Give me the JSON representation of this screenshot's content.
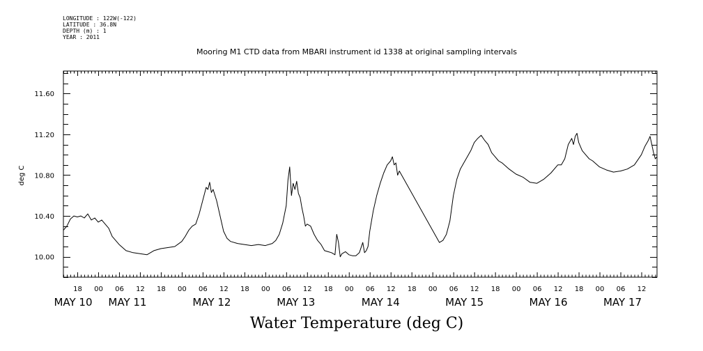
{
  "header": {
    "longitude": "LONGITUDE : 122W(-122)",
    "latitude": "LATITUDE : 36.8N",
    "depth": "DEPTH (m) : 1",
    "year": "YEAR : 2011"
  },
  "title": "Mooring M1 CTD data from MBARI instrument id 1338 at original sampling intervals",
  "footer": "Water Temperature (deg C)",
  "chart_data": {
    "type": "line",
    "title": "Mooring M1 CTD data from MBARI instrument id 1338 at original sampling intervals",
    "xlabel": "",
    "ylabel": "deg C",
    "x_unit": "hours since May 10 00:00 (2011)",
    "xlim": [
      14,
      184.5
    ],
    "ylim": [
      9.8,
      11.82
    ],
    "y_ticks": [
      10.0,
      10.4,
      10.8,
      11.2,
      11.6
    ],
    "y_tick_labels": [
      "10.00",
      "10.40",
      "10.80",
      "11.20",
      "11.60"
    ],
    "x_tick_hours": [
      18,
      24,
      30,
      36,
      42,
      48,
      54,
      60,
      66,
      72,
      78,
      84,
      90,
      96,
      102,
      108,
      114,
      120,
      126,
      132,
      138,
      144,
      150,
      156,
      162,
      168,
      174,
      180
    ],
    "x_tick_labels": [
      "18",
      "00",
      "06",
      "12",
      "18",
      "00",
      "06",
      "12",
      "18",
      "00",
      "06",
      "12",
      "18",
      "00",
      "06",
      "12",
      "18",
      "00",
      "06",
      "12",
      "18",
      "00",
      "06",
      "12",
      "18",
      "00",
      "06",
      "12"
    ],
    "day_labels": [
      {
        "text": "MAY 10",
        "hour": 16.8
      },
      {
        "text": "MAY 11",
        "hour": 32.4
      },
      {
        "text": "MAY 12",
        "hour": 56.6
      },
      {
        "text": "MAY 13",
        "hour": 80.8
      },
      {
        "text": "MAY 14",
        "hour": 105.1
      },
      {
        "text": "MAY 15",
        "hour": 129.2
      },
      {
        "text": "MAY 16",
        "hour": 153.3
      },
      {
        "text": "MAY 17",
        "hour": 174.6
      }
    ],
    "grid": false,
    "series": [
      {
        "name": "",
        "color": "#000000",
        "points": [
          [
            14.0,
            10.26
          ],
          [
            15.0,
            10.3
          ],
          [
            16.0,
            10.37
          ],
          [
            17.0,
            10.4
          ],
          [
            18.0,
            10.39
          ],
          [
            19.0,
            10.4
          ],
          [
            20.0,
            10.38
          ],
          [
            21.0,
            10.42
          ],
          [
            22.0,
            10.36
          ],
          [
            23.0,
            10.38
          ],
          [
            24.0,
            10.34
          ],
          [
            25.0,
            10.36
          ],
          [
            26.0,
            10.32
          ],
          [
            27.0,
            10.28
          ],
          [
            28.0,
            10.2
          ],
          [
            30.0,
            10.12
          ],
          [
            32.0,
            10.06
          ],
          [
            34.0,
            10.04
          ],
          [
            36.0,
            10.03
          ],
          [
            38.0,
            10.02
          ],
          [
            40.0,
            10.06
          ],
          [
            42.0,
            10.08
          ],
          [
            44.0,
            10.09
          ],
          [
            46.0,
            10.1
          ],
          [
            48.0,
            10.15
          ],
          [
            49.0,
            10.2
          ],
          [
            50.0,
            10.26
          ],
          [
            51.0,
            10.3
          ],
          [
            52.0,
            10.32
          ],
          [
            53.0,
            10.42
          ],
          [
            54.0,
            10.55
          ],
          [
            55.0,
            10.68
          ],
          [
            55.5,
            10.66
          ],
          [
            56.0,
            10.73
          ],
          [
            56.5,
            10.63
          ],
          [
            57.0,
            10.66
          ],
          [
            58.0,
            10.55
          ],
          [
            59.0,
            10.4
          ],
          [
            60.0,
            10.25
          ],
          [
            61.0,
            10.18
          ],
          [
            62.0,
            10.15
          ],
          [
            64.0,
            10.13
          ],
          [
            66.0,
            10.12
          ],
          [
            68.0,
            10.11
          ],
          [
            70.0,
            10.12
          ],
          [
            72.0,
            10.11
          ],
          [
            74.0,
            10.13
          ],
          [
            75.0,
            10.16
          ],
          [
            76.0,
            10.22
          ],
          [
            77.0,
            10.33
          ],
          [
            78.0,
            10.5
          ],
          [
            78.5,
            10.75
          ],
          [
            79.0,
            10.88
          ],
          [
            79.5,
            10.6
          ],
          [
            80.0,
            10.72
          ],
          [
            80.5,
            10.66
          ],
          [
            81.0,
            10.74
          ],
          [
            81.5,
            10.62
          ],
          [
            82.0,
            10.58
          ],
          [
            82.5,
            10.48
          ],
          [
            83.0,
            10.4
          ],
          [
            83.5,
            10.3
          ],
          [
            84.0,
            10.32
          ],
          [
            85.0,
            10.3
          ],
          [
            86.0,
            10.22
          ],
          [
            87.0,
            10.16
          ],
          [
            88.0,
            10.12
          ],
          [
            89.0,
            10.06
          ],
          [
            90.0,
            10.05
          ],
          [
            91.0,
            10.04
          ],
          [
            92.0,
            10.02
          ],
          [
            92.5,
            10.22
          ],
          [
            93.0,
            10.14
          ],
          [
            93.5,
            10.0
          ],
          [
            94.0,
            10.03
          ],
          [
            95.0,
            10.05
          ],
          [
            96.0,
            10.02
          ],
          [
            97.0,
            10.01
          ],
          [
            98.0,
            10.01
          ],
          [
            99.0,
            10.04
          ],
          [
            100.0,
            10.14
          ],
          [
            100.5,
            10.04
          ],
          [
            101.0,
            10.06
          ],
          [
            101.5,
            10.1
          ],
          [
            102.0,
            10.25
          ],
          [
            103.0,
            10.45
          ],
          [
            104.0,
            10.6
          ],
          [
            105.0,
            10.72
          ],
          [
            106.0,
            10.82
          ],
          [
            107.0,
            10.9
          ],
          [
            108.0,
            10.94
          ],
          [
            108.5,
            10.98
          ],
          [
            109.0,
            10.9
          ],
          [
            109.5,
            10.92
          ],
          [
            110.0,
            10.8
          ],
          [
            110.5,
            10.84
          ],
          [
            122.0,
            10.14
          ],
          [
            123.0,
            10.16
          ],
          [
            124.0,
            10.22
          ],
          [
            125.0,
            10.35
          ],
          [
            126.0,
            10.6
          ],
          [
            127.0,
            10.76
          ],
          [
            128.0,
            10.86
          ],
          [
            129.0,
            10.92
          ],
          [
            130.0,
            10.98
          ],
          [
            131.0,
            11.04
          ],
          [
            132.0,
            11.12
          ],
          [
            133.0,
            11.16
          ],
          [
            134.0,
            11.19
          ],
          [
            135.0,
            11.14
          ],
          [
            136.0,
            11.1
          ],
          [
            137.0,
            11.02
          ],
          [
            138.0,
            10.98
          ],
          [
            139.0,
            10.94
          ],
          [
            140.0,
            10.92
          ],
          [
            142.0,
            10.86
          ],
          [
            144.0,
            10.81
          ],
          [
            146.0,
            10.78
          ],
          [
            148.0,
            10.73
          ],
          [
            150.0,
            10.72
          ],
          [
            152.0,
            10.76
          ],
          [
            154.0,
            10.82
          ],
          [
            156.0,
            10.9
          ],
          [
            157.0,
            10.9
          ],
          [
            158.0,
            10.96
          ],
          [
            159.0,
            11.1
          ],
          [
            160.0,
            11.16
          ],
          [
            160.5,
            11.1
          ],
          [
            161.0,
            11.18
          ],
          [
            161.5,
            11.21
          ],
          [
            162.0,
            11.12
          ],
          [
            163.0,
            11.04
          ],
          [
            164.0,
            11.0
          ],
          [
            165.0,
            10.96
          ],
          [
            166.0,
            10.94
          ],
          [
            168.0,
            10.88
          ],
          [
            170.0,
            10.85
          ],
          [
            172.0,
            10.83
          ],
          [
            174.0,
            10.84
          ],
          [
            176.0,
            10.86
          ],
          [
            178.0,
            10.9
          ],
          [
            180.0,
            11.0
          ],
          [
            181.0,
            11.08
          ],
          [
            182.0,
            11.14
          ],
          [
            182.5,
            11.18
          ],
          [
            183.0,
            11.1
          ],
          [
            183.5,
            11.02
          ],
          [
            184.0,
            10.96
          ],
          [
            184.5,
            10.98
          ]
        ]
      }
    ]
  }
}
